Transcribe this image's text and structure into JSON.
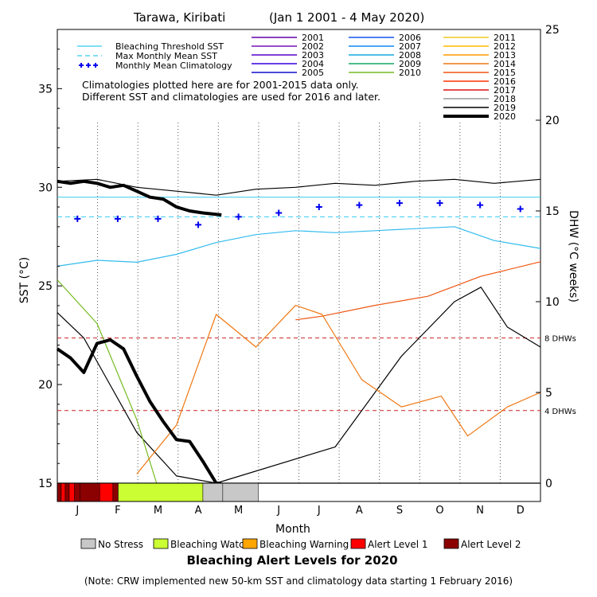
{
  "title": "Tarawa, Kiribati",
  "date_range": "(Jan 1 2001 - 4 May 2020)",
  "notes": [
    "Climatologies plotted here are for 2001-2015 data only.",
    "Different SST and climatologies are used for 2016 and later."
  ],
  "footnote": "(Note: CRW implemented new 50-km SST and climatology data starting 1 February 2016)",
  "alert_title": "Bleaching Alert Levels for 2020",
  "dhw_threshold_labels": [
    "8 DHWs",
    "4 DHWs"
  ],
  "alert_legend": [
    {
      "label": "No Stress",
      "color": "#c8c8c8"
    },
    {
      "label": "Bleaching Watch",
      "color": "#ccff33"
    },
    {
      "label": "Bleaching Warning",
      "color": "#ffa500"
    },
    {
      "label": "Alert Level 1",
      "color": "#ff0000"
    },
    {
      "label": "Alert Level 2",
      "color": "#8b0000"
    }
  ],
  "alert_strip_2020": [
    {
      "from_day": 0,
      "to_day": 3,
      "level": "Alert Level 2"
    },
    {
      "from_day": 3,
      "to_day": 6,
      "level": "Alert Level 1"
    },
    {
      "from_day": 6,
      "to_day": 9,
      "level": "Alert Level 2"
    },
    {
      "from_day": 9,
      "to_day": 13,
      "level": "Alert Level 1"
    },
    {
      "from_day": 13,
      "to_day": 17,
      "level": "Alert Level 2"
    },
    {
      "from_day": 17,
      "to_day": 32,
      "level": "Alert Level 2"
    },
    {
      "from_day": 32,
      "to_day": 42,
      "level": "Alert Level 1"
    },
    {
      "from_day": 42,
      "to_day": 46,
      "level": "Alert Level 2"
    },
    {
      "from_day": 46,
      "to_day": 110,
      "level": "Bleaching Watch"
    },
    {
      "from_day": 110,
      "to_day": 125,
      "level": "No Stress"
    },
    {
      "from_day": 125,
      "to_day": 152,
      "level": "No Stress"
    }
  ],
  "chart_data": {
    "type": "line",
    "xlabel": "Month",
    "ylabel_left": "SST (°C)",
    "ylabel_right": "DHW (°C weeks)",
    "x_ticks": [
      "J",
      "F",
      "M",
      "A",
      "M",
      "J",
      "J",
      "A",
      "S",
      "O",
      "N",
      "D"
    ],
    "y_left_ticks": [
      15,
      20,
      25,
      30,
      35
    ],
    "y_right_ticks": [
      0,
      5,
      10,
      15,
      20,
      25
    ],
    "y_left_range": [
      15,
      38
    ],
    "y_right_range": [
      0,
      25
    ],
    "dhw_thresholds": [
      8,
      4
    ],
    "legend_ref": [
      {
        "name": "Bleaching Threshold SST",
        "color": "#33ccee",
        "style": "solid"
      },
      {
        "name": "Max Monthly Mean SST",
        "color": "#33ccee",
        "style": "dashed"
      },
      {
        "name": "Monthly Mean Climatology",
        "color": "#0000ee",
        "style": "cross"
      }
    ],
    "years": [
      {
        "name": "2001",
        "color": "#6600aa"
      },
      {
        "name": "2002",
        "color": "#7711bb"
      },
      {
        "name": "2003",
        "color": "#5500cc"
      },
      {
        "name": "2004",
        "color": "#3300dd"
      },
      {
        "name": "2005",
        "color": "#1111cc"
      },
      {
        "name": "2006",
        "color": "#1155ee"
      },
      {
        "name": "2007",
        "color": "#1188ee"
      },
      {
        "name": "2008",
        "color": "#11aadd"
      },
      {
        "name": "2009",
        "color": "#11aa66"
      },
      {
        "name": "2010",
        "color": "#77bb22"
      },
      {
        "name": "2011",
        "color": "#eecc22"
      },
      {
        "name": "2012",
        "color": "#ffbb00"
      },
      {
        "name": "2013",
        "color": "#ff9900"
      },
      {
        "name": "2014",
        "color": "#ee7711"
      },
      {
        "name": "2015",
        "color": "#ee5511"
      },
      {
        "name": "2016",
        "color": "#ff3300"
      },
      {
        "name": "2017",
        "color": "#dd1111"
      },
      {
        "name": "2018",
        "color": "#999999"
      },
      {
        "name": "2019",
        "color": "#000000"
      },
      {
        "name": "2020",
        "color": "#000000"
      }
    ],
    "bleaching_threshold_sst": 29.5,
    "max_monthly_mean_sst": 28.5,
    "monthly_mean_climatology": [
      28.4,
      28.4,
      28.4,
      28.1,
      28.5,
      28.7,
      29.0,
      29.1,
      29.2,
      29.2,
      29.1,
      28.9
    ],
    "sst_2020": [
      [
        0,
        30.3
      ],
      [
        10,
        30.2
      ],
      [
        20,
        30.3
      ],
      [
        30,
        30.2
      ],
      [
        40,
        30.0
      ],
      [
        50,
        30.1
      ],
      [
        60,
        29.8
      ],
      [
        70,
        29.5
      ],
      [
        80,
        29.4
      ],
      [
        90,
        29.0
      ],
      [
        100,
        28.8
      ],
      [
        110,
        28.7
      ],
      [
        124,
        28.6
      ]
    ],
    "sst_2019": [
      [
        0,
        30.3
      ],
      [
        30,
        30.4
      ],
      [
        60,
        30.0
      ],
      [
        90,
        29.8
      ],
      [
        120,
        29.6
      ],
      [
        150,
        29.9
      ],
      [
        180,
        30.0
      ],
      [
        210,
        30.2
      ],
      [
        240,
        30.1
      ],
      [
        270,
        30.3
      ],
      [
        300,
        30.4
      ],
      [
        330,
        30.2
      ],
      [
        365,
        30.4
      ]
    ],
    "sst_envelope_low": [
      [
        0,
        26.0
      ],
      [
        30,
        26.3
      ],
      [
        60,
        26.2
      ],
      [
        90,
        26.6
      ],
      [
        120,
        27.2
      ],
      [
        150,
        27.6
      ],
      [
        180,
        27.8
      ],
      [
        210,
        27.7
      ],
      [
        240,
        27.8
      ],
      [
        270,
        27.9
      ],
      [
        300,
        28.0
      ],
      [
        330,
        27.3
      ],
      [
        365,
        26.9
      ]
    ],
    "dhw_2020": [
      [
        0,
        7.4
      ],
      [
        10,
        6.9
      ],
      [
        20,
        6.1
      ],
      [
        30,
        7.7
      ],
      [
        40,
        7.9
      ],
      [
        50,
        7.4
      ],
      [
        60,
        5.9
      ],
      [
        70,
        4.5
      ],
      [
        80,
        3.4
      ],
      [
        90,
        2.4
      ],
      [
        100,
        2.3
      ],
      [
        110,
        1.2
      ],
      [
        120,
        0.0
      ],
      [
        124,
        0.0
      ]
    ],
    "dhw_2019": [
      [
        0,
        9.4
      ],
      [
        20,
        8.0
      ],
      [
        60,
        2.8
      ],
      [
        90,
        0.4
      ],
      [
        120,
        0.0
      ],
      [
        210,
        2.0
      ],
      [
        260,
        7.0
      ],
      [
        300,
        10.0
      ],
      [
        320,
        10.8
      ],
      [
        340,
        8.6
      ],
      [
        365,
        7.5
      ]
    ],
    "dhw_2015": [
      [
        180,
        9.0
      ],
      [
        200,
        9.2
      ],
      [
        240,
        9.8
      ],
      [
        280,
        10.3
      ],
      [
        320,
        11.4
      ],
      [
        365,
        12.2
      ]
    ],
    "dhw_2010": [
      [
        0,
        11.2
      ],
      [
        30,
        8.8
      ],
      [
        60,
        3.5
      ],
      [
        75,
        0.0
      ]
    ],
    "dhw_2014": [
      [
        60,
        0.5
      ],
      [
        90,
        3.2
      ],
      [
        120,
        9.3
      ],
      [
        150,
        7.5
      ],
      [
        180,
        9.8
      ],
      [
        200,
        9.3
      ],
      [
        230,
        5.7
      ],
      [
        260,
        4.2
      ],
      [
        290,
        4.8
      ],
      [
        310,
        2.6
      ],
      [
        340,
        4.2
      ],
      [
        365,
        5.0
      ]
    ]
  }
}
